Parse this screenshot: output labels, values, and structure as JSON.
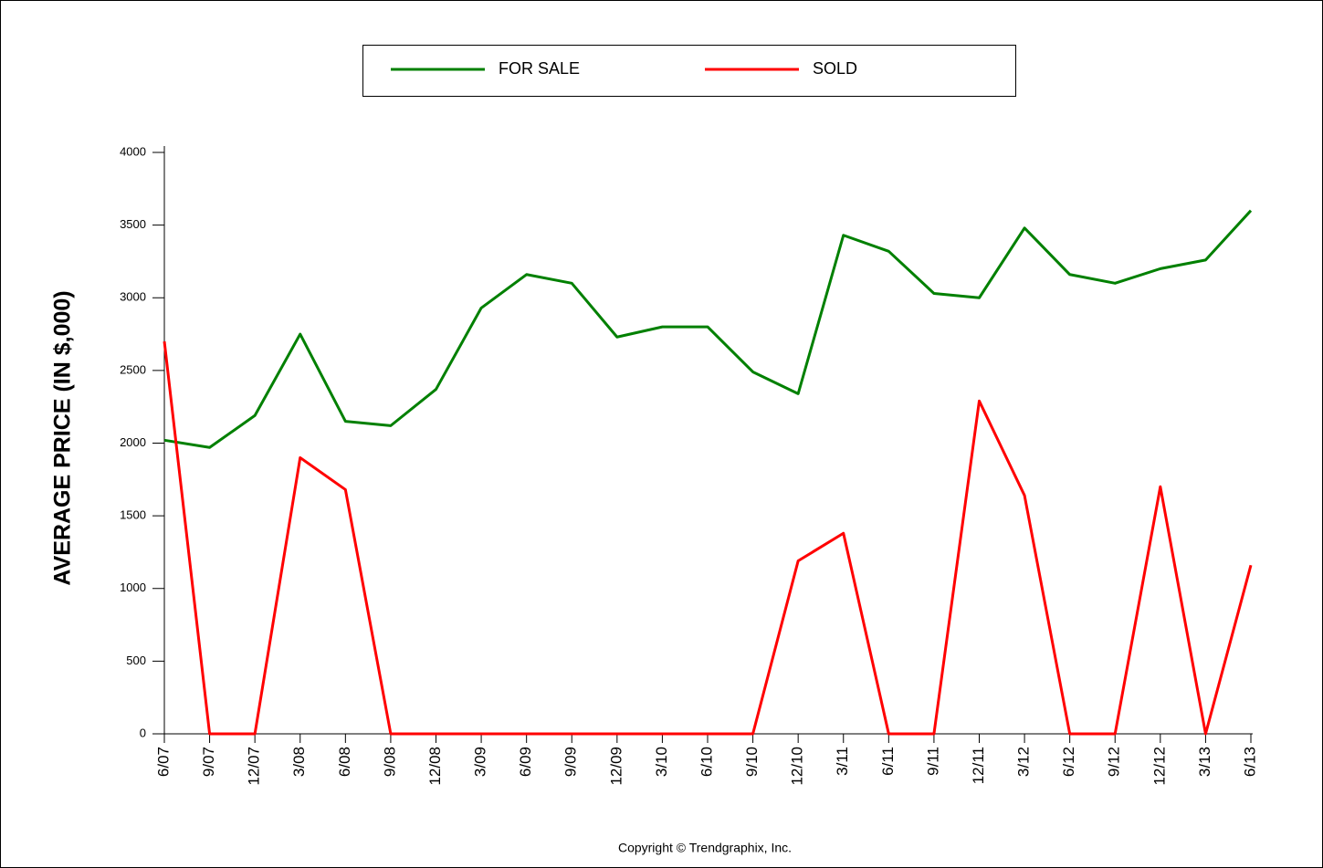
{
  "chart_data": {
    "type": "line",
    "y_label": "AVERAGE PRICE (IN $,000)",
    "footer": "Copyright © Trendgraphix, Inc.",
    "categories": [
      "6/07",
      "9/07",
      "12/07",
      "3/08",
      "6/08",
      "9/08",
      "12/08",
      "3/09",
      "6/09",
      "9/09",
      "12/09",
      "3/10",
      "6/10",
      "9/10",
      "12/10",
      "3/11",
      "6/11",
      "9/11",
      "12/11",
      "3/12",
      "6/12",
      "9/12",
      "12/12",
      "3/13",
      "6/13"
    ],
    "series": [
      {
        "name": "FOR SALE",
        "color": "#008000",
        "values": [
          2020,
          1970,
          2190,
          2750,
          2150,
          2120,
          2370,
          2930,
          3160,
          3100,
          2730,
          2800,
          2800,
          2490,
          2340,
          3430,
          3320,
          3030,
          3000,
          3480,
          3160,
          3100,
          3200,
          3260,
          3600
        ]
      },
      {
        "name": "SOLD",
        "color": "#ff0000",
        "values": [
          2700,
          0,
          0,
          1900,
          1680,
          0,
          0,
          0,
          0,
          0,
          0,
          0,
          0,
          0,
          1190,
          1380,
          0,
          0,
          2290,
          1640,
          0,
          0,
          1700,
          0,
          1160
        ]
      }
    ],
    "ylim": [
      0,
      4000
    ],
    "yticks": [
      0,
      500,
      1000,
      1500,
      2000,
      2500,
      3000,
      3500,
      4000
    ],
    "grid": false
  }
}
